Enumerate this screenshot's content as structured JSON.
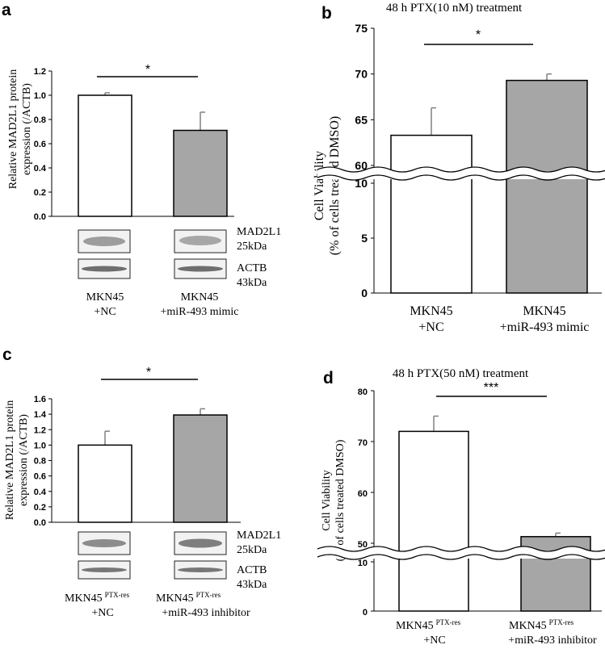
{
  "panels": {
    "a": {
      "letter": "a",
      "ylabel_line1": "Relative MAD2L1 protein",
      "ylabel_line2": "expression (/ACTB)",
      "significance": "*",
      "blot_labels": [
        "MAD2L1",
        "25kDa",
        "ACTB",
        "43kDa"
      ],
      "group1": [
        "MKN45",
        "+NC"
      ],
      "group2": [
        "MKN45",
        "+miR-493 mimic"
      ]
    },
    "b": {
      "letter": "b",
      "title": "48 h PTX(10 nM) treatment",
      "ylabel_line1": "Cell Viability",
      "ylabel_line2": "(% of cells treated DMSO)",
      "significance": "*",
      "group1": [
        "MKN45",
        "+NC"
      ],
      "group2": [
        "MKN45",
        "+miR-493 mimic"
      ]
    },
    "c": {
      "letter": "c",
      "ylabel_line1": "Relative MAD2L1 protein",
      "ylabel_line2": "expression (/ACTB)",
      "significance": "*",
      "blot_labels": [
        "MAD2L1",
        "25kDa",
        "ACTB",
        "43kDa"
      ],
      "group1": [
        "MKN45",
        "PTX-res",
        "+NC"
      ],
      "group2": [
        "MKN45",
        "PTX-res",
        "+miR-493 inhibitor"
      ]
    },
    "d": {
      "letter": "d",
      "title": "48 h PTX(50 nM) treatment",
      "ylabel_line1": "Cell Viability",
      "ylabel_line2": "(% of cells treated DMSO)",
      "significance": "***",
      "group1": [
        "MKN45",
        "PTX-res",
        "+NC"
      ],
      "group2": [
        "MKN45",
        "PTX-res",
        "+miR-493 inhibitor"
      ]
    }
  },
  "colors": {
    "bar1": "#ffffff",
    "bar2": "#a6a6a6",
    "error": "#808080",
    "axis": "#000000"
  },
  "chart_data": [
    {
      "id": "a",
      "type": "bar",
      "categories": [
        "MKN45 +NC",
        "MKN45 +miR-493 mimic"
      ],
      "values": [
        1.0,
        0.71
      ],
      "errors": [
        0.02,
        0.15
      ],
      "ylim": [
        0,
        1.2
      ],
      "yticks": [
        "0.0",
        "0.2",
        "0.4",
        "0.6",
        "0.8",
        "1.0",
        "1.2"
      ]
    },
    {
      "id": "b",
      "type": "bar",
      "categories": [
        "MKN45 +NC",
        "MKN45 +miR-493 mimic"
      ],
      "values": [
        63.3,
        69.3
      ],
      "errors": [
        3.0,
        0.7
      ],
      "axis_break": [
        15,
        55
      ],
      "yticks_lower": [
        "0",
        "5",
        "10"
      ],
      "yticks_upper": [
        "60",
        "65",
        "70",
        "75"
      ]
    },
    {
      "id": "c",
      "type": "bar",
      "categories": [
        "MKN45 PTX-res +NC",
        "MKN45 PTX-res +miR-493 inhibitor"
      ],
      "values": [
        1.0,
        1.39
      ],
      "errors": [
        0.18,
        0.08
      ],
      "ylim": [
        0,
        1.6
      ],
      "yticks": [
        "0.0",
        "0.2",
        "0.4",
        "0.6",
        "0.8",
        "1.0",
        "1.2",
        "1.4",
        "1.6"
      ]
    },
    {
      "id": "d",
      "type": "bar",
      "categories": [
        "MKN45 PTX-res +NC",
        "MKN45 PTX-res +miR-493 inhibitor"
      ],
      "values": [
        72.0,
        51.3
      ],
      "errors": [
        3.0,
        0.7
      ],
      "axis_break": [
        20,
        40
      ],
      "yticks_lower": [
        "0",
        "10"
      ],
      "yticks_upper": [
        "50",
        "60",
        "70",
        "80"
      ]
    }
  ]
}
